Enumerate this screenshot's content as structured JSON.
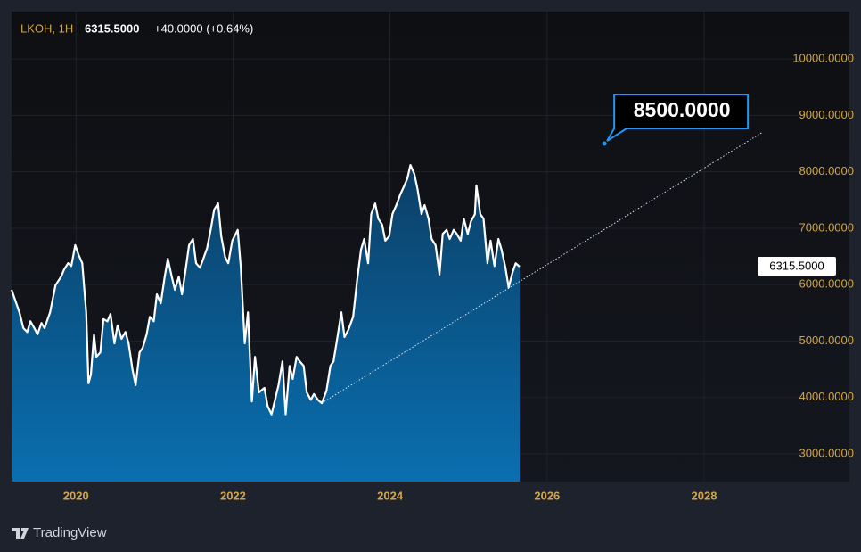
{
  "chart_data": {
    "type": "area",
    "symbol": "LKOH, 1H",
    "last_price": "6315.5000",
    "change": "+40.0000 (+0.64%)",
    "color": "#ffffff",
    "x": [
      2019.18,
      2019.24,
      2019.28,
      2019.33,
      2019.38,
      2019.42,
      2019.47,
      2019.51,
      2019.56,
      2019.6,
      2019.67,
      2019.74,
      2019.81,
      2019.85,
      2019.9,
      2019.94,
      2019.99,
      2020.03,
      2020.08,
      2020.13,
      2020.16,
      2020.19,
      2020.23,
      2020.26,
      2020.31,
      2020.35,
      2020.4,
      2020.44,
      2020.49,
      2020.53,
      2020.58,
      2020.63,
      2020.67,
      2020.72,
      2020.76,
      2020.81,
      2020.85,
      2020.9,
      2020.94,
      2020.99,
      2021.03,
      2021.08,
      2021.13,
      2021.17,
      2021.22,
      2021.26,
      2021.31,
      2021.35,
      2021.4,
      2021.44,
      2021.49,
      2021.53,
      2021.58,
      2021.63,
      2021.67,
      2021.72,
      2021.76,
      2021.81,
      2021.85,
      2021.9,
      2021.94,
      2021.99,
      2022.06,
      2022.1,
      2022.15,
      2022.19,
      2022.24,
      2022.28,
      2022.33,
      2022.4,
      2022.44,
      2022.49,
      2022.53,
      2022.58,
      2022.63,
      2022.67,
      2022.72,
      2022.76,
      2022.81,
      2022.85,
      2022.9,
      2022.94,
      2022.99,
      2023.03,
      2023.08,
      2023.13,
      2023.19,
      2023.24,
      2023.28,
      2023.33,
      2023.38,
      2023.42,
      2023.47,
      2023.53,
      2023.58,
      2023.63,
      2023.67,
      2023.72,
      2023.76,
      2023.81,
      2023.85,
      2023.9,
      2023.94,
      2023.99,
      2024.03,
      2024.08,
      2024.13,
      2024.17,
      2024.22,
      2024.26,
      2024.31,
      2024.35,
      2024.4,
      2024.44,
      2024.49,
      2024.53,
      2024.58,
      2024.63,
      2024.67,
      2024.72,
      2024.76,
      2024.81,
      2024.85,
      2024.9,
      2024.94,
      2024.99,
      2025.03,
      2025.08,
      2025.1,
      2025.15,
      2025.19,
      2025.24,
      2025.28,
      2025.33,
      2025.38,
      2025.42,
      2025.47,
      2025.51,
      2025.56,
      2025.6,
      2025.65
    ],
    "values": [
      5910,
      5670,
      5510,
      5230,
      5160,
      5350,
      5230,
      5120,
      5320,
      5230,
      5510,
      5990,
      6140,
      6270,
      6380,
      6330,
      6700,
      6540,
      6380,
      5510,
      4250,
      4410,
      5120,
      4720,
      4800,
      5390,
      5350,
      5480,
      4960,
      5280,
      5040,
      5160,
      4960,
      4490,
      4220,
      4800,
      4880,
      5120,
      5430,
      5350,
      5830,
      5670,
      6140,
      6460,
      6140,
      5910,
      6140,
      5830,
      6300,
      6700,
      6810,
      6380,
      6300,
      6490,
      6650,
      7010,
      7330,
      7440,
      6860,
      6490,
      6380,
      6780,
      6970,
      6300,
      4960,
      5510,
      3930,
      4720,
      4090,
      4170,
      3850,
      3700,
      3930,
      4220,
      4640,
      3700,
      4560,
      4330,
      4720,
      4640,
      4560,
      4090,
      3960,
      4060,
      3960,
      3900,
      4120,
      4560,
      4640,
      5070,
      5510,
      5070,
      5200,
      5430,
      6070,
      6620,
      6810,
      6380,
      7250,
      7440,
      7170,
      7060,
      6780,
      6860,
      7250,
      7410,
      7600,
      7720,
      7880,
      8120,
      7960,
      7690,
      7250,
      7410,
      7170,
      6810,
      6700,
      6180,
      6900,
      6970,
      6810,
      6970,
      6900,
      6780,
      7170,
      6900,
      7120,
      7250,
      7760,
      7250,
      7170,
      6380,
      6780,
      6330,
      6810,
      6620,
      6300,
      5950,
      6220,
      6380,
      6320
    ],
    "trendline": {
      "x": [
        2023.13,
        2028.73
      ],
      "values": [
        3900,
        8690
      ]
    },
    "annotation": {
      "x": 2026.73,
      "value": 8500,
      "label": "8500.0000"
    },
    "xlim": [
      2019.18,
      2029.85
    ],
    "xticks": [
      2020,
      2022,
      2024,
      2026,
      2028
    ],
    "ylim": [
      2510,
      10840
    ],
    "yticks": [
      {
        "value": 3000,
        "label": "3000.0000"
      },
      {
        "value": 4000,
        "label": "4000.0000"
      },
      {
        "value": 5000,
        "label": "5000.0000"
      },
      {
        "value": 6000,
        "label": "6000.0000"
      },
      {
        "value": 7000,
        "label": "7000.0000"
      },
      {
        "value": 8000,
        "label": "8000.0000"
      },
      {
        "value": 9000,
        "label": "9000.0000"
      },
      {
        "value": 10000,
        "label": "10000.0000"
      }
    ],
    "grid": true,
    "brand": "TradingView"
  }
}
